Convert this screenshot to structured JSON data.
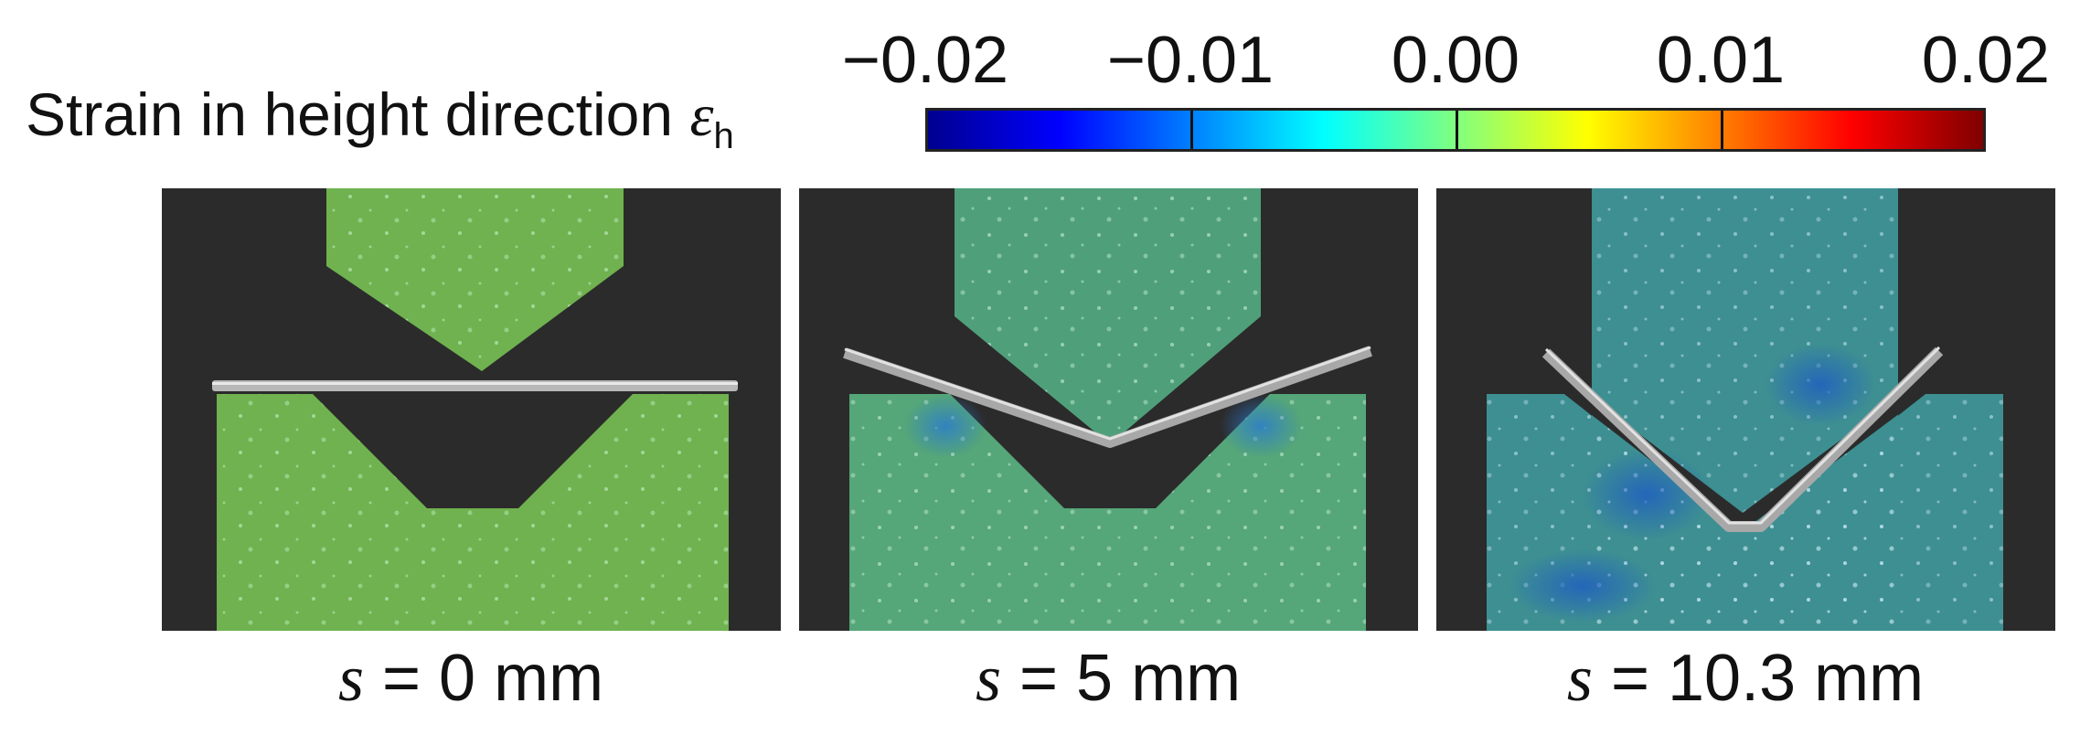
{
  "colorbar": {
    "label": "Strain in height direction",
    "symbol": "ε",
    "subscript": "h",
    "ticks": [
      "−0.02",
      "−0.01",
      "0.00",
      "0.01",
      "0.02"
    ],
    "colormap": [
      "#00008f",
      "#0000ff",
      "#0080ff",
      "#00ffff",
      "#80ff80",
      "#ffff00",
      "#ff8000",
      "#ff0000",
      "#800000"
    ]
  },
  "panels": [
    {
      "variable": "s",
      "equals": " = ",
      "value": "0 mm"
    },
    {
      "variable": "s",
      "equals": " = ",
      "value": "5 mm"
    },
    {
      "variable": "s",
      "equals": " = ",
      "value": "10.3 mm"
    }
  ]
}
